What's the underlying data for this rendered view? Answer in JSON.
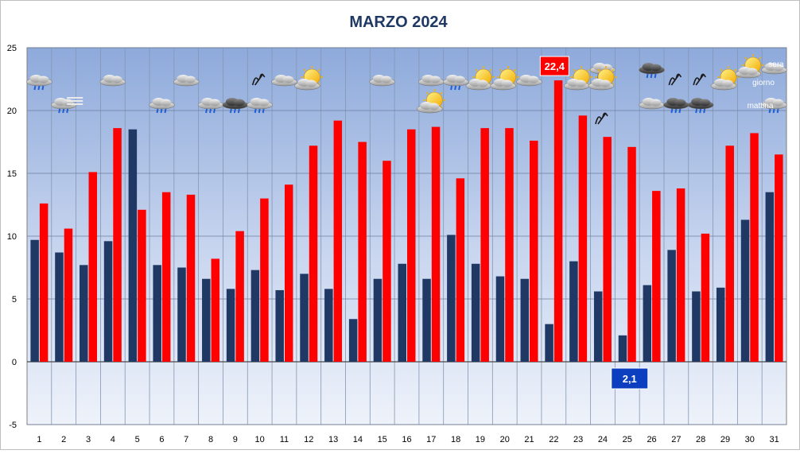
{
  "chart_data": {
    "type": "bar",
    "title": "MARZO 2024",
    "categories": [
      "1",
      "2",
      "3",
      "4",
      "5",
      "6",
      "7",
      "8",
      "9",
      "10",
      "11",
      "12",
      "13",
      "14",
      "15",
      "16",
      "17",
      "18",
      "19",
      "20",
      "21",
      "22",
      "23",
      "24",
      "25",
      "26",
      "27",
      "28",
      "29",
      "30",
      "31"
    ],
    "series": [
      {
        "color": "#1f3864",
        "values": [
          9.7,
          8.7,
          7.7,
          9.6,
          18.5,
          7.7,
          7.5,
          6.6,
          5.8,
          7.3,
          5.7,
          7.0,
          5.8,
          3.4,
          6.6,
          7.8,
          6.6,
          10.1,
          7.8,
          6.8,
          6.6,
          3.0,
          8.0,
          5.6,
          2.1,
          6.1,
          8.9,
          5.6,
          5.9,
          11.3,
          13.5
        ]
      },
      {
        "color": "#ff0000",
        "values": [
          12.6,
          10.6,
          15.1,
          18.6,
          12.1,
          13.5,
          13.3,
          8.2,
          10.4,
          13.0,
          14.1,
          17.2,
          19.2,
          17.5,
          16.0,
          18.5,
          18.7,
          14.6,
          18.6,
          18.6,
          17.6,
          22.4,
          19.6,
          17.9,
          17.1,
          13.6,
          13.8,
          10.2,
          17.2,
          18.2,
          16.5
        ]
      }
    ],
    "ylim": [
      -5,
      25
    ],
    "yticks": [
      "-5",
      "0",
      "5",
      "10",
      "15",
      "20",
      "25"
    ],
    "grid": true,
    "legend": "none",
    "annotations": [
      {
        "text": "22,4",
        "category": "22",
        "value": 22.4,
        "series": 1,
        "color": "#ff0000"
      },
      {
        "text": "2,1",
        "category": "25",
        "value": 2.1,
        "series": 0,
        "color": "#0b3fbf"
      }
    ],
    "legend_labels": {
      "evening": "sera",
      "day": "giorno",
      "morning": "mattina"
    },
    "weather_icons": [
      {
        "day": "1",
        "row": "top",
        "icon": "cloud-rain-icon"
      },
      {
        "day": "2",
        "row": "mid",
        "icon": "cloud-rain-icon"
      },
      {
        "day": "2",
        "row": "mid",
        "icon": "fog-icon"
      },
      {
        "day": "4",
        "row": "top",
        "icon": "cloud-icon"
      },
      {
        "day": "6",
        "row": "mid",
        "icon": "cloud-rain-icon"
      },
      {
        "day": "7",
        "row": "top",
        "icon": "cloud-icon"
      },
      {
        "day": "8",
        "row": "mid",
        "icon": "cloud-rain-icon"
      },
      {
        "day": "9",
        "row": "mid",
        "icon": "storm-cloud-icon"
      },
      {
        "day": "10",
        "row": "mid",
        "icon": "cloud-rain-icon"
      },
      {
        "day": "10",
        "row": "top",
        "icon": "wind-icon"
      },
      {
        "day": "11",
        "row": "top",
        "icon": "cloud-icon"
      },
      {
        "day": "12",
        "row": "top",
        "icon": "sun-cloud-icon"
      },
      {
        "day": "15",
        "row": "top",
        "icon": "cloud-icon"
      },
      {
        "day": "17",
        "row": "top",
        "icon": "cloud-icon"
      },
      {
        "day": "17",
        "row": "mid",
        "icon": "sun-cloud-icon"
      },
      {
        "day": "18",
        "row": "top",
        "icon": "cloud-rain-icon"
      },
      {
        "day": "19",
        "row": "top",
        "icon": "sun-cloud-icon"
      },
      {
        "day": "20",
        "row": "top",
        "icon": "sun-cloud-icon"
      },
      {
        "day": "21",
        "row": "top",
        "icon": "cloud-icon"
      },
      {
        "day": "23",
        "row": "top",
        "icon": "sun-cloud-icon"
      },
      {
        "day": "24",
        "row": "high",
        "icon": "cloud-rain-icon"
      },
      {
        "day": "24",
        "row": "top",
        "icon": "sun-cloud-icon"
      },
      {
        "day": "24",
        "row": "low",
        "icon": "wind-icon"
      },
      {
        "day": "26",
        "row": "high",
        "icon": "storm-cloud-icon"
      },
      {
        "day": "26",
        "row": "mid",
        "icon": "cloud-icon"
      },
      {
        "day": "27",
        "row": "top",
        "icon": "wind-icon"
      },
      {
        "day": "27",
        "row": "mid",
        "icon": "storm-cloud-icon"
      },
      {
        "day": "28",
        "row": "top",
        "icon": "wind-icon"
      },
      {
        "day": "28",
        "row": "mid",
        "icon": "storm-cloud-icon"
      },
      {
        "day": "29",
        "row": "top",
        "icon": "sun-cloud-icon"
      },
      {
        "day": "30",
        "row": "high",
        "icon": "sun-cloud-icon"
      },
      {
        "day": "31",
        "row": "high",
        "icon": "cloud-icon"
      },
      {
        "day": "31",
        "row": "mid",
        "icon": "cloud-rain-icon"
      }
    ]
  }
}
